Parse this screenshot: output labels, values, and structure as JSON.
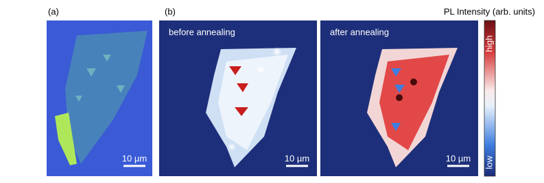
{
  "panels": {
    "a": {
      "label": "(a)",
      "scale_bar": "10 µm"
    },
    "b": {
      "label": "(b)",
      "colorbar_title": "PL Intensity (arb. units)",
      "colorbar_high": "high",
      "colorbar_low": "low",
      "maps": [
        {
          "title": "before annealing",
          "scale_bar": "10 µm"
        },
        {
          "title": "after annealing",
          "scale_bar": "10 µm"
        }
      ]
    }
  }
}
